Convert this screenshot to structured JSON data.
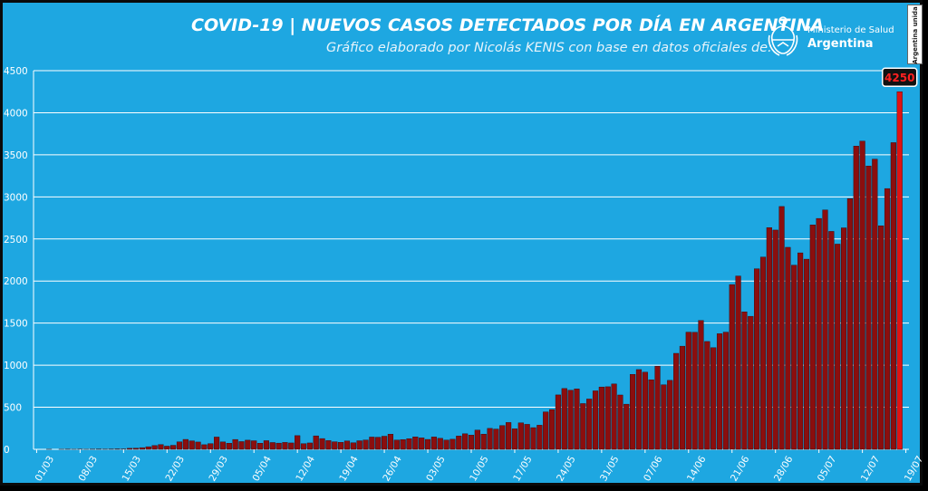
{
  "header": {
    "title": "COVID-19  |  NUEVOS CASOS DETECTADOS POR DÍA EN ARGENTINA",
    "subtitle": "Gráfico elaborado por Nicolás KENIS con base en datos oficiales de:"
  },
  "logo": {
    "line1": "Ministerio de Salud",
    "line2": "Argentina"
  },
  "badge": {
    "text": "Argentina unida"
  },
  "colors": {
    "background": "#1ea7e1",
    "bar": "#8b0e0e",
    "bar_highlight": "#e01212",
    "grid": "#ffffff"
  },
  "chart_data": {
    "type": "bar",
    "ylim": [
      0,
      4500
    ],
    "yticks": [
      "0",
      "500",
      "1000",
      "1500",
      "2000",
      "2500",
      "3000",
      "3500",
      "4000",
      "4500"
    ],
    "xticks": [
      "01/03",
      "08/03",
      "15/03",
      "22/03",
      "29/03",
      "05/04",
      "12/04",
      "19/04",
      "26/04",
      "03/05",
      "10/05",
      "17/05",
      "24/05",
      "31/05",
      "07/06",
      "14/06",
      "21/06",
      "28/06",
      "05/07",
      "12/07",
      "19/07"
    ],
    "grid": true,
    "callout": "4250",
    "values": [
      0,
      0,
      1,
      0,
      1,
      2,
      1,
      2,
      1,
      2,
      3,
      2,
      3,
      5,
      4,
      12,
      14,
      20,
      31,
      45,
      56,
      38,
      48,
      89,
      118,
      101,
      87,
      55,
      68,
      146,
      88,
      73,
      117,
      92,
      109,
      102,
      73,
      103,
      81,
      74,
      82,
      76,
      163,
      67,
      76,
      160,
      128,
      104,
      90,
      83,
      99,
      78,
      102,
      111,
      146,
      144,
      156,
      180,
      110,
      116,
      127,
      148,
      136,
      118,
      147,
      131,
      110,
      120,
      158,
      185,
      169,
      229,
      181,
      249,
      241,
      283,
      319,
      244,
      315,
      297,
      258,
      287,
      445,
      473,
      647,
      723,
      703,
      718,
      544,
      598,
      695,
      741,
      744,
      777,
      646,
      537,
      891,
      948,
      917,
      827,
      988,
      767,
      820,
      1141,
      1226,
      1393,
      1391,
      1531,
      1282,
      1208,
      1374,
      1393,
      1958,
      2060,
      1634,
      1581,
      2146,
      2285,
      2635,
      2606,
      2886,
      2401,
      2189,
      2335,
      2260,
      2667,
      2744,
      2845,
      2590,
      2439,
      2632,
      2979,
      3604,
      3663,
      3367,
      3449,
      2657,
      3099,
      3645,
      4250
    ]
  }
}
